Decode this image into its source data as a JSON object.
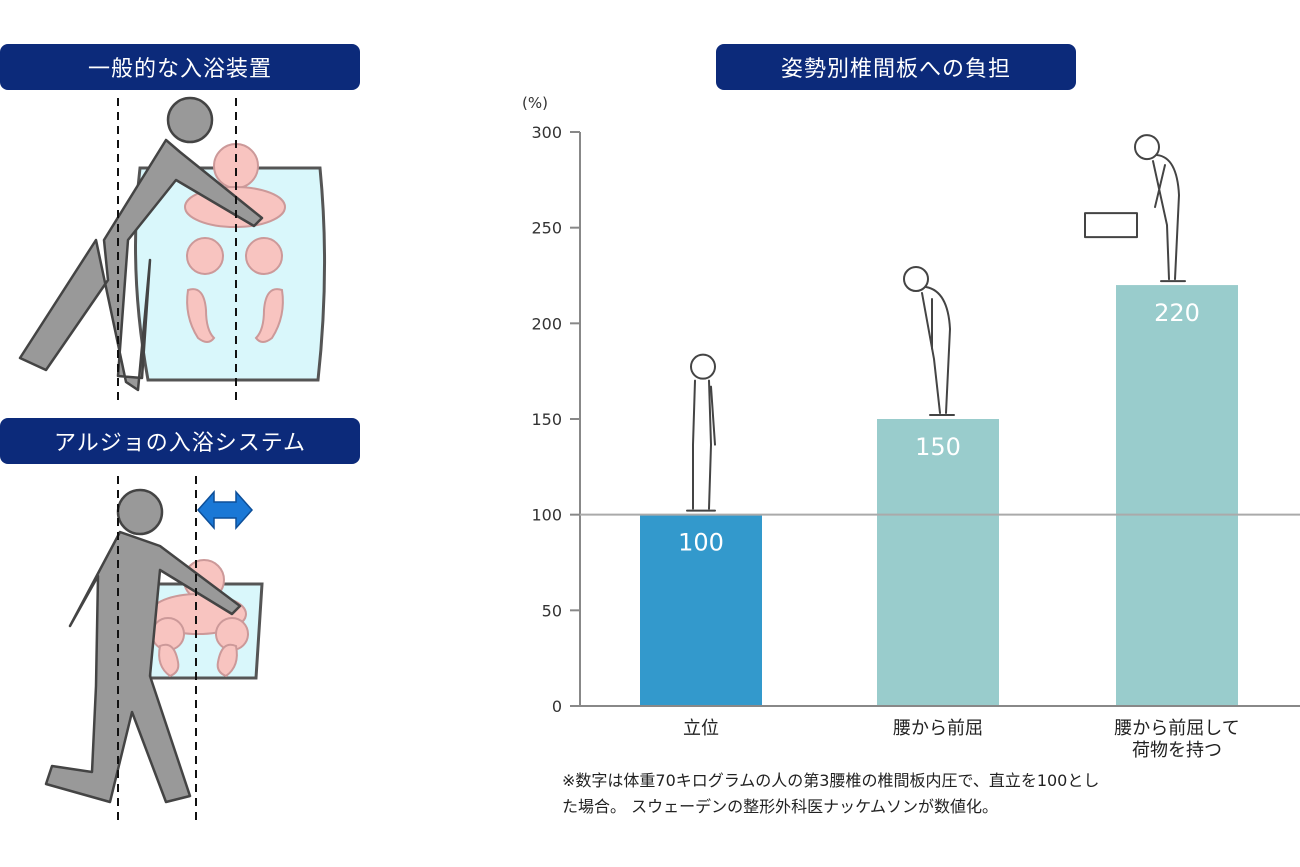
{
  "illustrations": {
    "conventional_title": "一般的な入浴装置",
    "arjo_title": "アルジョの入浴システム"
  },
  "colors": {
    "header_bg": "#0c2a7a",
    "bar_highlight": "#3399cc",
    "bar_normal": "#99cccc",
    "figure_gray": "#999999",
    "bath_water": "#d9f7fb",
    "patient_pink": "#f8c4c0",
    "arrow_blue": "#1a78d6"
  },
  "chart_data": {
    "type": "bar",
    "title": "姿勢別椎間板への負担",
    "ylabel": "(%)",
    "ylim": [
      0,
      300
    ],
    "yticks": [
      0,
      50,
      100,
      150,
      200,
      250,
      300
    ],
    "reference_line": 100,
    "categories": [
      [
        "立位"
      ],
      [
        "腰から前屈"
      ],
      [
        "腰から前屈して",
        "荷物を持つ"
      ]
    ],
    "values": [
      100,
      150,
      220
    ],
    "data_labels": [
      "100",
      "150",
      "220"
    ],
    "highlight_index": 0
  },
  "footnote": {
    "line1": "※数字は体重70キログラムの人の第3腰椎の椎間板内圧で、直立を100とし",
    "line2": "た場合。 スウェーデンの整形外科医ナッケムソンが数値化。"
  }
}
